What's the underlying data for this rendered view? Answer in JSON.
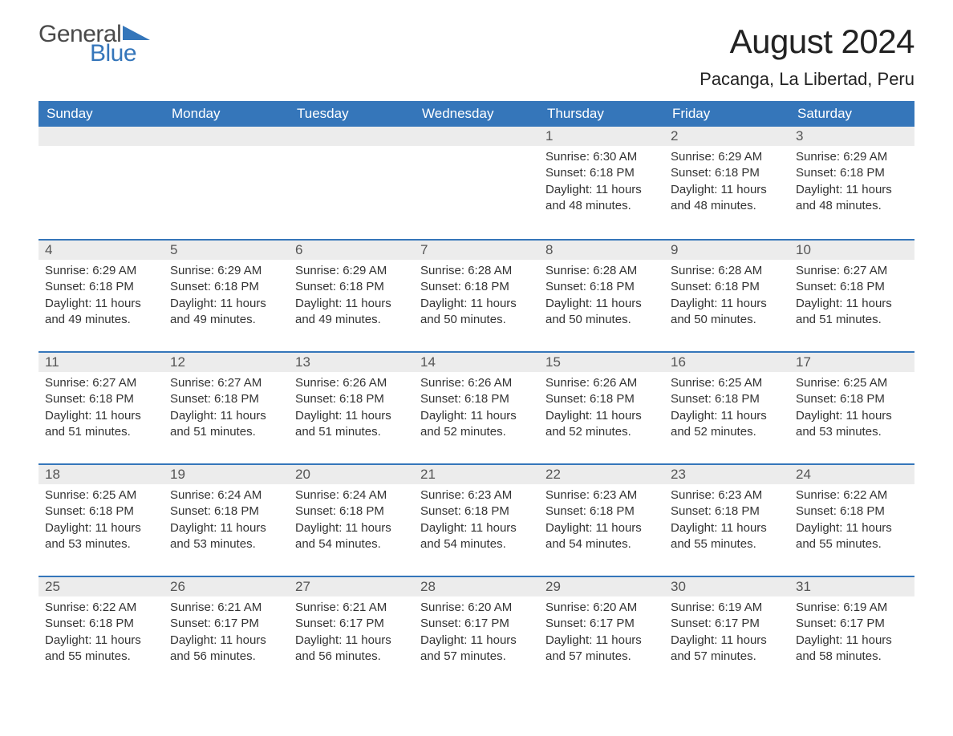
{
  "logo": {
    "text1": "General",
    "text2": "Blue",
    "brand_color": "#3576ba",
    "text_color": "#4a4a4a"
  },
  "header": {
    "month_title": "August 2024",
    "location": "Pacanga, La Libertad, Peru"
  },
  "calendar": {
    "type": "table",
    "accent_color": "#3576ba",
    "stripe_color": "#ececec",
    "background_color": "#ffffff",
    "text_color": "#333333",
    "day_headers": [
      "Sunday",
      "Monday",
      "Tuesday",
      "Wednesday",
      "Thursday",
      "Friday",
      "Saturday"
    ],
    "weeks": [
      [
        {
          "num": "",
          "sunrise": "",
          "sunset": "",
          "daylight": ""
        },
        {
          "num": "",
          "sunrise": "",
          "sunset": "",
          "daylight": ""
        },
        {
          "num": "",
          "sunrise": "",
          "sunset": "",
          "daylight": ""
        },
        {
          "num": "",
          "sunrise": "",
          "sunset": "",
          "daylight": ""
        },
        {
          "num": "1",
          "sunrise": "Sunrise: 6:30 AM",
          "sunset": "Sunset: 6:18 PM",
          "daylight": "Daylight: 11 hours and 48 minutes."
        },
        {
          "num": "2",
          "sunrise": "Sunrise: 6:29 AM",
          "sunset": "Sunset: 6:18 PM",
          "daylight": "Daylight: 11 hours and 48 minutes."
        },
        {
          "num": "3",
          "sunrise": "Sunrise: 6:29 AM",
          "sunset": "Sunset: 6:18 PM",
          "daylight": "Daylight: 11 hours and 48 minutes."
        }
      ],
      [
        {
          "num": "4",
          "sunrise": "Sunrise: 6:29 AM",
          "sunset": "Sunset: 6:18 PM",
          "daylight": "Daylight: 11 hours and 49 minutes."
        },
        {
          "num": "5",
          "sunrise": "Sunrise: 6:29 AM",
          "sunset": "Sunset: 6:18 PM",
          "daylight": "Daylight: 11 hours and 49 minutes."
        },
        {
          "num": "6",
          "sunrise": "Sunrise: 6:29 AM",
          "sunset": "Sunset: 6:18 PM",
          "daylight": "Daylight: 11 hours and 49 minutes."
        },
        {
          "num": "7",
          "sunrise": "Sunrise: 6:28 AM",
          "sunset": "Sunset: 6:18 PM",
          "daylight": "Daylight: 11 hours and 50 minutes."
        },
        {
          "num": "8",
          "sunrise": "Sunrise: 6:28 AM",
          "sunset": "Sunset: 6:18 PM",
          "daylight": "Daylight: 11 hours and 50 minutes."
        },
        {
          "num": "9",
          "sunrise": "Sunrise: 6:28 AM",
          "sunset": "Sunset: 6:18 PM",
          "daylight": "Daylight: 11 hours and 50 minutes."
        },
        {
          "num": "10",
          "sunrise": "Sunrise: 6:27 AM",
          "sunset": "Sunset: 6:18 PM",
          "daylight": "Daylight: 11 hours and 51 minutes."
        }
      ],
      [
        {
          "num": "11",
          "sunrise": "Sunrise: 6:27 AM",
          "sunset": "Sunset: 6:18 PM",
          "daylight": "Daylight: 11 hours and 51 minutes."
        },
        {
          "num": "12",
          "sunrise": "Sunrise: 6:27 AM",
          "sunset": "Sunset: 6:18 PM",
          "daylight": "Daylight: 11 hours and 51 minutes."
        },
        {
          "num": "13",
          "sunrise": "Sunrise: 6:26 AM",
          "sunset": "Sunset: 6:18 PM",
          "daylight": "Daylight: 11 hours and 51 minutes."
        },
        {
          "num": "14",
          "sunrise": "Sunrise: 6:26 AM",
          "sunset": "Sunset: 6:18 PM",
          "daylight": "Daylight: 11 hours and 52 minutes."
        },
        {
          "num": "15",
          "sunrise": "Sunrise: 6:26 AM",
          "sunset": "Sunset: 6:18 PM",
          "daylight": "Daylight: 11 hours and 52 minutes."
        },
        {
          "num": "16",
          "sunrise": "Sunrise: 6:25 AM",
          "sunset": "Sunset: 6:18 PM",
          "daylight": "Daylight: 11 hours and 52 minutes."
        },
        {
          "num": "17",
          "sunrise": "Sunrise: 6:25 AM",
          "sunset": "Sunset: 6:18 PM",
          "daylight": "Daylight: 11 hours and 53 minutes."
        }
      ],
      [
        {
          "num": "18",
          "sunrise": "Sunrise: 6:25 AM",
          "sunset": "Sunset: 6:18 PM",
          "daylight": "Daylight: 11 hours and 53 minutes."
        },
        {
          "num": "19",
          "sunrise": "Sunrise: 6:24 AM",
          "sunset": "Sunset: 6:18 PM",
          "daylight": "Daylight: 11 hours and 53 minutes."
        },
        {
          "num": "20",
          "sunrise": "Sunrise: 6:24 AM",
          "sunset": "Sunset: 6:18 PM",
          "daylight": "Daylight: 11 hours and 54 minutes."
        },
        {
          "num": "21",
          "sunrise": "Sunrise: 6:23 AM",
          "sunset": "Sunset: 6:18 PM",
          "daylight": "Daylight: 11 hours and 54 minutes."
        },
        {
          "num": "22",
          "sunrise": "Sunrise: 6:23 AM",
          "sunset": "Sunset: 6:18 PM",
          "daylight": "Daylight: 11 hours and 54 minutes."
        },
        {
          "num": "23",
          "sunrise": "Sunrise: 6:23 AM",
          "sunset": "Sunset: 6:18 PM",
          "daylight": "Daylight: 11 hours and 55 minutes."
        },
        {
          "num": "24",
          "sunrise": "Sunrise: 6:22 AM",
          "sunset": "Sunset: 6:18 PM",
          "daylight": "Daylight: 11 hours and 55 minutes."
        }
      ],
      [
        {
          "num": "25",
          "sunrise": "Sunrise: 6:22 AM",
          "sunset": "Sunset: 6:18 PM",
          "daylight": "Daylight: 11 hours and 55 minutes."
        },
        {
          "num": "26",
          "sunrise": "Sunrise: 6:21 AM",
          "sunset": "Sunset: 6:17 PM",
          "daylight": "Daylight: 11 hours and 56 minutes."
        },
        {
          "num": "27",
          "sunrise": "Sunrise: 6:21 AM",
          "sunset": "Sunset: 6:17 PM",
          "daylight": "Daylight: 11 hours and 56 minutes."
        },
        {
          "num": "28",
          "sunrise": "Sunrise: 6:20 AM",
          "sunset": "Sunset: 6:17 PM",
          "daylight": "Daylight: 11 hours and 57 minutes."
        },
        {
          "num": "29",
          "sunrise": "Sunrise: 6:20 AM",
          "sunset": "Sunset: 6:17 PM",
          "daylight": "Daylight: 11 hours and 57 minutes."
        },
        {
          "num": "30",
          "sunrise": "Sunrise: 6:19 AM",
          "sunset": "Sunset: 6:17 PM",
          "daylight": "Daylight: 11 hours and 57 minutes."
        },
        {
          "num": "31",
          "sunrise": "Sunrise: 6:19 AM",
          "sunset": "Sunset: 6:17 PM",
          "daylight": "Daylight: 11 hours and 58 minutes."
        }
      ]
    ]
  }
}
